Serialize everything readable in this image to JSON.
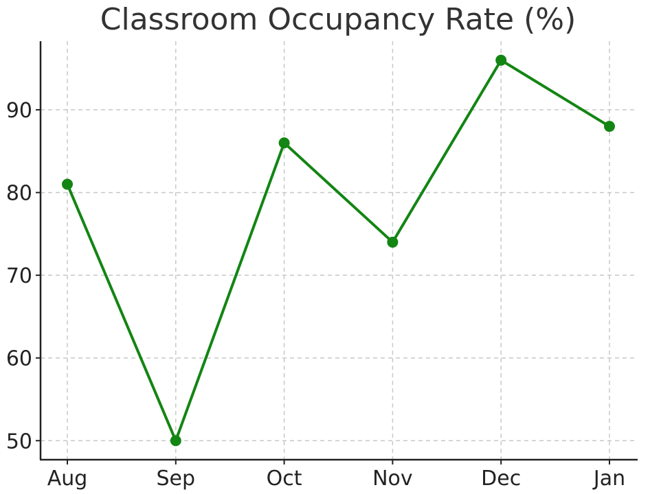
{
  "chart_data": {
    "type": "line",
    "title": "Classroom Occupancy Rate (%)",
    "xlabel": "",
    "ylabel": "",
    "categories": [
      "Aug",
      "Sep",
      "Oct",
      "Nov",
      "Dec",
      "Jan"
    ],
    "series": [
      {
        "values": [
          81,
          50,
          86,
          74,
          96,
          88
        ],
        "color": "#138513"
      }
    ],
    "yticks": [
      50,
      60,
      70,
      80,
      90
    ],
    "ylim": [
      47.7,
      98.3
    ],
    "grid": true,
    "legend": "none"
  }
}
